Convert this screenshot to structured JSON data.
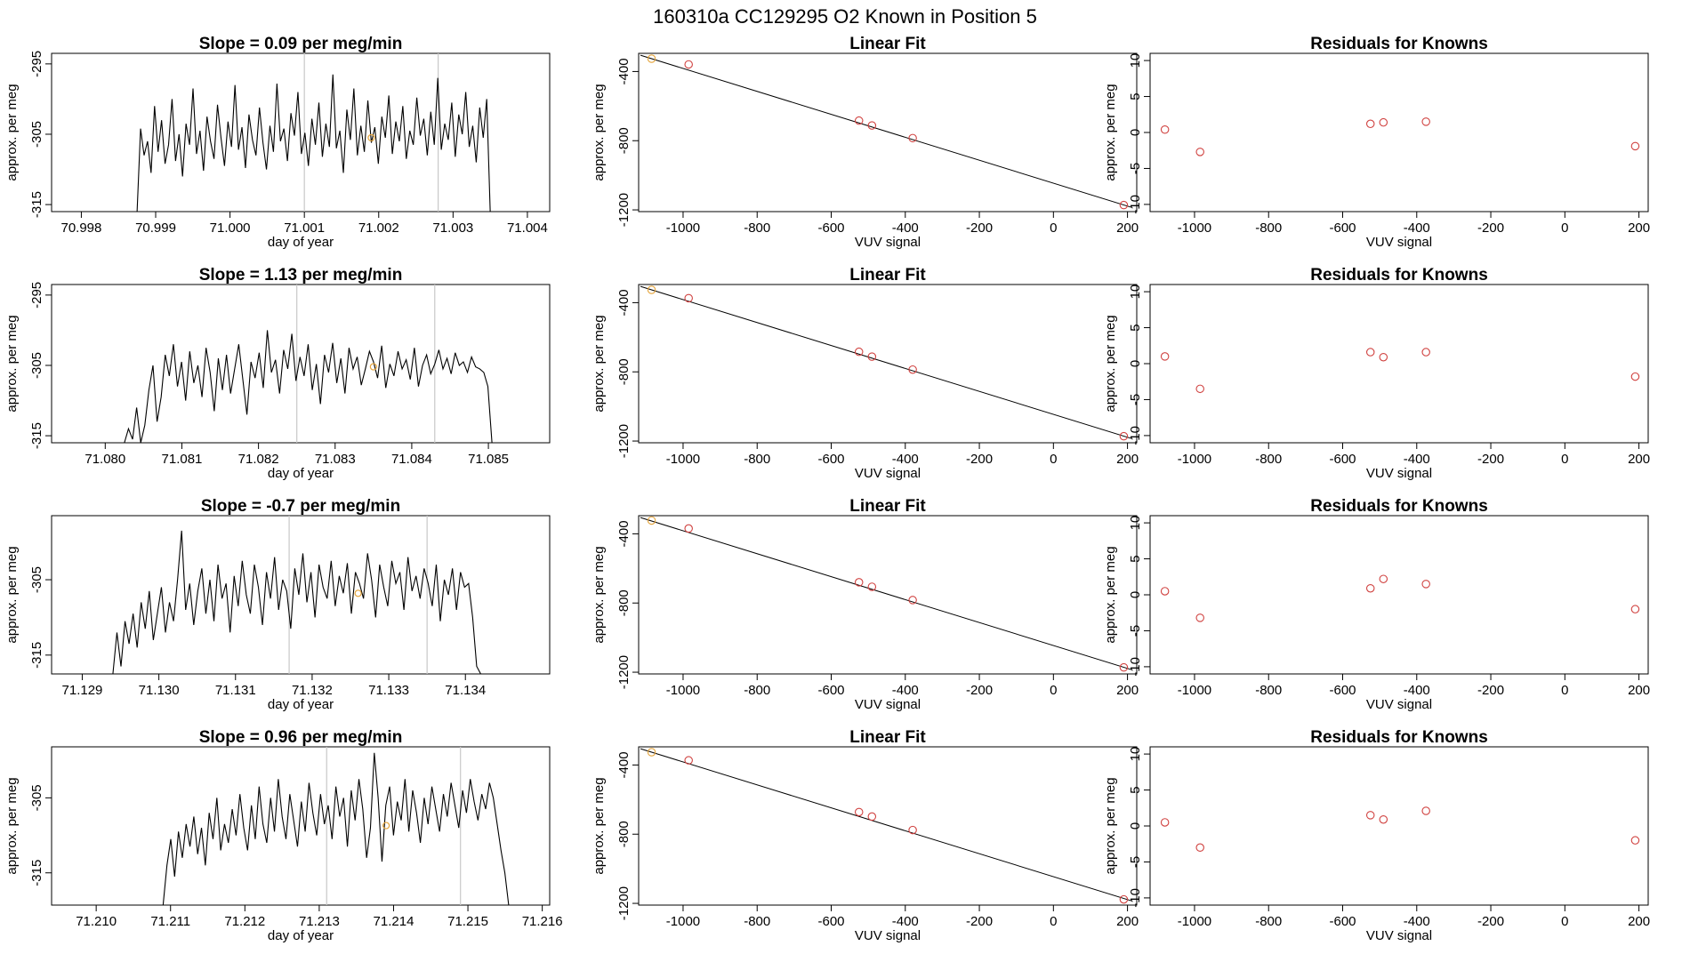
{
  "figure_title": "160310a      CC129295   O2 Known in Position  5",
  "colors": {
    "ts_line": "#000000",
    "highlight": "#e5a43a",
    "known_points": "#d0413f",
    "reference_lines": "#c8c8c8"
  },
  "chart_data": [
    {
      "row": 1,
      "type": "line",
      "title": "Slope =  0.09  per meg/min",
      "xlabel": "day of year",
      "ylabel": "approx. per meg",
      "xlim": [
        70.9976,
        71.0043
      ],
      "ylim": [
        -316,
        -293.5
      ],
      "xticks": [
        70.998,
        70.999,
        71.0,
        71.001,
        71.002,
        71.003,
        71.004
      ],
      "xtick_labels": [
        "70.998",
        "70.999",
        "71.000",
        "71.001",
        "71.002",
        "71.003",
        "71.004"
      ],
      "yticks": [
        -315,
        -305,
        -295
      ],
      "ytick_labels": [
        "-315",
        "-305",
        "-295"
      ],
      "x_start": 70.99875,
      "x_end": 71.0035,
      "y_start": -316,
      "y_end": -316,
      "ref_lines": [
        71.001,
        71.0028
      ],
      "highlight_point": {
        "x": 71.0019,
        "y": -305.5
      },
      "values": [
        -304.2,
        -308.0,
        -306.0,
        -310.5,
        -301.0,
        -307.5,
        -303.0,
        -309.2,
        -306.5,
        -300.0,
        -308.8,
        -305.0,
        -311.0,
        -303.5,
        -306.5,
        -298.5,
        -307.8,
        -304.5,
        -310.2,
        -302.5,
        -306.0,
        -308.5,
        -300.8,
        -305.5,
        -309.5,
        -303.2,
        -306.8,
        -298.0,
        -307.2,
        -304.0,
        -309.8,
        -302.2,
        -305.8,
        -308.0,
        -301.2,
        -306.2,
        -310.0,
        -303.8,
        -307.5,
        -297.8,
        -306.0,
        -304.2,
        -308.8,
        -302.0,
        -305.2,
        -299.0,
        -307.8,
        -304.8,
        -309.5,
        -302.8,
        -306.5,
        -300.5,
        -308.2,
        -303.5,
        -306.8,
        -296.5,
        -307.0,
        -304.5,
        -310.5,
        -301.5,
        -305.8,
        -298.5,
        -308.0,
        -303.8,
        -307.5,
        -300.2,
        -306.2,
        -304.0,
        -309.2,
        -302.5,
        -305.5,
        -299.5,
        -307.8,
        -303.2,
        -306.0,
        -301.0,
        -308.5,
        -304.5,
        -306.5,
        -299.8,
        -305.2,
        -302.8,
        -308.0,
        -301.8,
        -306.5,
        -297.0,
        -307.2,
        -303.5,
        -305.8,
        -300.5,
        -308.2,
        -302.2,
        -305.0,
        -299.0,
        -306.8,
        -303.8,
        -309.0,
        -301.2,
        -305.5,
        -300.0
      ]
    },
    {
      "row": 2,
      "type": "line",
      "title": "Slope =  1.13  per meg/min",
      "xlabel": "day of year",
      "ylabel": "approx. per meg",
      "xlim": [
        71.0793,
        71.0858
      ],
      "ylim": [
        -316,
        -293.5
      ],
      "xticks": [
        71.08,
        71.081,
        71.082,
        71.083,
        71.084,
        71.085
      ],
      "xtick_labels": [
        "71.080",
        "71.081",
        "71.082",
        "71.083",
        "71.084",
        "71.085"
      ],
      "yticks": [
        -315,
        -305,
        -295
      ],
      "ytick_labels": [
        "-315",
        "-305",
        "-295"
      ],
      "x_start": 71.08025,
      "x_end": 71.0851,
      "y_start": -316,
      "y_end": -316,
      "ref_lines": [
        71.0825,
        71.0843
      ],
      "highlight_point": {
        "x": 71.0835,
        "y": -305.2
      },
      "values": [
        -314.0,
        -315.5,
        -311.0,
        -316.0,
        -313.5,
        -308.5,
        -305.0,
        -313.0,
        -309.5,
        -303.5,
        -306.5,
        -302.0,
        -308.0,
        -304.5,
        -310.0,
        -303.0,
        -307.5,
        -305.0,
        -309.5,
        -302.5,
        -306.0,
        -311.5,
        -304.0,
        -308.5,
        -303.5,
        -309.0,
        -305.5,
        -302.0,
        -307.0,
        -312.0,
        -304.5,
        -306.8,
        -303.2,
        -308.2,
        -300.0,
        -306.0,
        -304.2,
        -309.0,
        -302.8,
        -305.5,
        -300.5,
        -307.2,
        -303.8,
        -306.5,
        -302.0,
        -308.5,
        -304.8,
        -310.5,
        -303.5,
        -306.0,
        -301.8,
        -307.5,
        -304.0,
        -309.0,
        -302.5,
        -305.5,
        -303.8,
        -307.8,
        -305.5,
        -303.0,
        -304.5,
        -306.8,
        -302.2,
        -308.2,
        -304.8,
        -306.5,
        -303.0,
        -305.5,
        -304.2,
        -307.0,
        -302.5,
        -308.0,
        -305.0,
        -303.5,
        -306.2,
        -304.8,
        -302.8,
        -305.5,
        -304.0,
        -306.2,
        -303.2,
        -305.0,
        -304.5,
        -306.0,
        -303.8,
        -305.2,
        -305.5,
        -306.0,
        -308.0,
        -316.0
      ]
    },
    {
      "row": 3,
      "type": "line",
      "title": "Slope =  -0.7  per meg/min",
      "xlabel": "day of year",
      "ylabel": "approx. per meg",
      "xlim": [
        71.1286,
        71.1351
      ],
      "ylim": [
        -317.5,
        -296.5
      ],
      "xticks": [
        71.129,
        71.13,
        71.131,
        71.132,
        71.133,
        71.134
      ],
      "xtick_labels": [
        "71.129",
        "71.130",
        "71.131",
        "71.132",
        "71.133",
        "71.134"
      ],
      "yticks": [
        -315,
        -305
      ],
      "ytick_labels": [
        "-315",
        "-305"
      ],
      "x_start": 71.1294,
      "x_end": 71.1342,
      "y_start": -317.5,
      "y_end": -317.5,
      "ref_lines": [
        71.1317,
        71.1335
      ],
      "highlight_point": {
        "x": 71.1326,
        "y": -306.8
      },
      "values": [
        -312.0,
        -316.5,
        -310.5,
        -313.5,
        -309.5,
        -314.0,
        -308.0,
        -311.5,
        -306.5,
        -313.0,
        -309.5,
        -306.0,
        -312.0,
        -308.0,
        -310.5,
        -305.0,
        -298.5,
        -309.0,
        -305.5,
        -311.0,
        -306.5,
        -303.5,
        -309.5,
        -305.0,
        -310.5,
        -303.0,
        -307.5,
        -305.5,
        -312.0,
        -304.5,
        -308.5,
        -302.5,
        -307.0,
        -309.5,
        -303.0,
        -306.0,
        -311.0,
        -304.0,
        -307.5,
        -302.0,
        -309.0,
        -305.0,
        -306.5,
        -311.5,
        -303.5,
        -307.0,
        -301.5,
        -308.0,
        -304.0,
        -310.0,
        -303.0,
        -306.0,
        -307.5,
        -302.5,
        -308.5,
        -304.5,
        -306.8,
        -302.8,
        -309.5,
        -304.0,
        -305.5,
        -307.5,
        -301.5,
        -305.0,
        -310.0,
        -303.0,
        -306.0,
        -308.5,
        -302.5,
        -305.5,
        -304.0,
        -309.0,
        -302.0,
        -306.5,
        -304.5,
        -307.5,
        -303.5,
        -305.5,
        -308.5,
        -303.0,
        -310.5,
        -305.0,
        -307.0,
        -303.5,
        -309.0,
        -304.0,
        -306.0,
        -305.5,
        -310.0,
        -316.5
      ]
    },
    {
      "row": 4,
      "type": "line",
      "title": "Slope =  0.96  per meg/min",
      "xlabel": "day of year",
      "ylabel": "approx. per meg",
      "xlim": [
        71.2094,
        71.2161
      ],
      "ylim": [
        -319.3,
        -298.2
      ],
      "xticks": [
        71.21,
        71.211,
        71.212,
        71.213,
        71.214,
        71.215,
        71.216
      ],
      "xtick_labels": [
        "71.210",
        "71.211",
        "71.212",
        "71.213",
        "71.214",
        "71.215",
        "71.216"
      ],
      "yticks": [
        -315,
        -305
      ],
      "ytick_labels": [
        "-315",
        "-305"
      ],
      "x_start": 71.2109,
      "x_end": 71.2156,
      "y_start": -319.3,
      "y_end": -319.3,
      "ref_lines": [
        71.2131,
        71.2149
      ],
      "highlight_point": {
        "x": 71.2139,
        "y": -308.7
      },
      "values": [
        -314.0,
        -310.5,
        -315.5,
        -309.5,
        -313.0,
        -308.5,
        -311.5,
        -307.5,
        -312.5,
        -309.0,
        -314.0,
        -307.0,
        -310.5,
        -305.0,
        -312.0,
        -308.5,
        -311.0,
        -306.5,
        -310.0,
        -304.5,
        -309.0,
        -312.0,
        -306.0,
        -310.5,
        -303.5,
        -308.5,
        -311.0,
        -305.0,
        -309.5,
        -302.5,
        -307.5,
        -310.5,
        -304.5,
        -308.0,
        -311.5,
        -305.5,
        -309.5,
        -303.0,
        -307.0,
        -310.0,
        -304.5,
        -308.5,
        -306.0,
        -310.5,
        -303.5,
        -307.5,
        -305.0,
        -311.5,
        -304.0,
        -308.0,
        -302.5,
        -306.5,
        -313.0,
        -309.0,
        -299.0,
        -305.0,
        -313.5,
        -306.0,
        -303.5,
        -310.0,
        -305.5,
        -308.0,
        -302.5,
        -309.5,
        -304.0,
        -307.0,
        -311.0,
        -305.0,
        -308.5,
        -303.5,
        -306.5,
        -309.5,
        -304.5,
        -307.5,
        -303.0,
        -306.0,
        -309.0,
        -304.0,
        -307.0,
        -302.5,
        -305.5,
        -308.0,
        -304.5,
        -306.5,
        -303.0,
        -305.0,
        -308.5,
        -312.0,
        -315.0,
        -319.3
      ]
    }
  ],
  "fit_charts": [
    {
      "row": 1,
      "type": "scatter",
      "title": "Linear Fit",
      "xlabel": "VUV signal",
      "ylabel": "approx. per meg",
      "xlim": [
        -1120,
        225
      ],
      "ylim": [
        -1210,
        -295
      ],
      "xticks": [
        -1000,
        -800,
        -600,
        -400,
        -200,
        0,
        200
      ],
      "xtick_labels": [
        "-1000",
        "-800",
        "-600",
        "-400",
        "-200",
        "0",
        "200"
      ],
      "yticks": [
        -1200,
        -800,
        -400
      ],
      "ytick_labels": [
        "-1200",
        "-800",
        "-400"
      ],
      "fit_line": {
        "x": [
          -1115,
          210
        ],
        "y": [
          -306,
          -1185
        ]
      },
      "points": [
        {
          "x": -1085,
          "y": -326,
          "color": "highlight"
        },
        {
          "x": -985,
          "y": -359,
          "color": "known"
        },
        {
          "x": -525,
          "y": -684,
          "color": "known"
        },
        {
          "x": -490,
          "y": -712,
          "color": "known"
        },
        {
          "x": -380,
          "y": -785,
          "color": "known"
        },
        {
          "x": 190,
          "y": -1172,
          "color": "known"
        }
      ]
    },
    {
      "row": 2,
      "type": "scatter",
      "title": "Linear Fit",
      "xlabel": "VUV signal",
      "ylabel": "approx. per meg",
      "xlim": [
        -1120,
        225
      ],
      "ylim": [
        -1210,
        -295
      ],
      "xticks": [
        -1000,
        -800,
        -600,
        -400,
        -200,
        0,
        200
      ],
      "xtick_labels": [
        "-1000",
        "-800",
        "-600",
        "-400",
        "-200",
        "0",
        "200"
      ],
      "yticks": [
        -1200,
        -800,
        -400
      ],
      "ytick_labels": [
        "-1200",
        "-800",
        "-400"
      ],
      "fit_line": {
        "x": [
          -1115,
          210
        ],
        "y": [
          -306,
          -1185
        ]
      },
      "points": [
        {
          "x": -1085,
          "y": -326,
          "color": "highlight"
        },
        {
          "x": -985,
          "y": -374,
          "color": "known"
        },
        {
          "x": -525,
          "y": -684,
          "color": "known"
        },
        {
          "x": -490,
          "y": -712,
          "color": "known"
        },
        {
          "x": -380,
          "y": -787,
          "color": "known"
        },
        {
          "x": 190,
          "y": -1172,
          "color": "known"
        }
      ]
    },
    {
      "row": 3,
      "type": "scatter",
      "title": "Linear Fit",
      "xlabel": "VUV signal",
      "ylabel": "approx. per meg",
      "xlim": [
        -1120,
        225
      ],
      "ylim": [
        -1210,
        -295
      ],
      "xticks": [
        -1000,
        -800,
        -600,
        -400,
        -200,
        0,
        200
      ],
      "xtick_labels": [
        "-1000",
        "-800",
        "-600",
        "-400",
        "-200",
        "0",
        "200"
      ],
      "yticks": [
        -1200,
        -800,
        -400
      ],
      "ytick_labels": [
        "-1200",
        "-800",
        "-400"
      ],
      "fit_line": {
        "x": [
          -1115,
          210
        ],
        "y": [
          -306,
          -1185
        ]
      },
      "points": [
        {
          "x": -1085,
          "y": -323,
          "color": "highlight"
        },
        {
          "x": -985,
          "y": -369,
          "color": "known"
        },
        {
          "x": -525,
          "y": -680,
          "color": "known"
        },
        {
          "x": -490,
          "y": -706,
          "color": "known"
        },
        {
          "x": -380,
          "y": -783,
          "color": "known"
        },
        {
          "x": 190,
          "y": -1172,
          "color": "known"
        }
      ]
    },
    {
      "row": 4,
      "type": "scatter",
      "title": "Linear Fit",
      "xlabel": "VUV signal",
      "ylabel": "approx. per meg",
      "xlim": [
        -1120,
        225
      ],
      "ylim": [
        -1210,
        -295
      ],
      "xticks": [
        -1000,
        -800,
        -600,
        -400,
        -200,
        0,
        200
      ],
      "xtick_labels": [
        "-1000",
        "-800",
        "-600",
        "-400",
        "-200",
        "0",
        "200"
      ],
      "yticks": [
        -1200,
        -800,
        -400
      ],
      "ytick_labels": [
        "-1200",
        "-800",
        "-400"
      ],
      "fit_line": {
        "x": [
          -1115,
          210
        ],
        "y": [
          -306,
          -1185
        ]
      },
      "points": [
        {
          "x": -1085,
          "y": -326,
          "color": "highlight"
        },
        {
          "x": -985,
          "y": -373,
          "color": "known"
        },
        {
          "x": -525,
          "y": -672,
          "color": "known"
        },
        {
          "x": -490,
          "y": -698,
          "color": "known"
        },
        {
          "x": -380,
          "y": -776,
          "color": "known"
        },
        {
          "x": 190,
          "y": -1177,
          "color": "known"
        }
      ]
    }
  ],
  "residual_charts": [
    {
      "row": 1,
      "type": "scatter",
      "title": "Residuals for Knowns",
      "xlabel": "VUV signal",
      "ylabel": "approx. per meg",
      "xlim": [
        -1120,
        225
      ],
      "ylim": [
        -11,
        11
      ],
      "xticks": [
        -1000,
        -800,
        -600,
        -400,
        -200,
        0,
        200
      ],
      "xtick_labels": [
        "-1000",
        "-800",
        "-600",
        "-400",
        "-200",
        "0",
        "200"
      ],
      "yticks": [
        -10,
        -5,
        0,
        5,
        10
      ],
      "ytick_labels": [
        "-10",
        "-5",
        "0",
        "5",
        "10"
      ],
      "x": [
        -1080,
        -985,
        -525,
        -490,
        -375,
        190
      ],
      "y": [
        0.4,
        -2.7,
        1.2,
        1.4,
        1.5,
        -1.9
      ]
    },
    {
      "row": 2,
      "type": "scatter",
      "title": "Residuals for Knowns",
      "xlabel": "VUV signal",
      "ylabel": "approx. per meg",
      "xlim": [
        -1120,
        225
      ],
      "ylim": [
        -11,
        11
      ],
      "xticks": [
        -1000,
        -800,
        -600,
        -400,
        -200,
        0,
        200
      ],
      "xtick_labels": [
        "-1000",
        "-800",
        "-600",
        "-400",
        "-200",
        "0",
        "200"
      ],
      "yticks": [
        -10,
        -5,
        0,
        5,
        10
      ],
      "ytick_labels": [
        "-10",
        "-5",
        "0",
        "5",
        "10"
      ],
      "x": [
        -1080,
        -985,
        -525,
        -490,
        -375,
        190
      ],
      "y": [
        1.0,
        -3.5,
        1.6,
        0.9,
        1.6,
        -1.8
      ]
    },
    {
      "row": 3,
      "type": "scatter",
      "title": "Residuals for Knowns",
      "xlabel": "VUV signal",
      "ylabel": "approx. per meg",
      "xlim": [
        -1120,
        225
      ],
      "ylim": [
        -11,
        11
      ],
      "xticks": [
        -1000,
        -800,
        -600,
        -400,
        -200,
        0,
        200
      ],
      "xtick_labels": [
        "-1000",
        "-800",
        "-600",
        "-400",
        "-200",
        "0",
        "200"
      ],
      "yticks": [
        -10,
        -5,
        0,
        5,
        10
      ],
      "ytick_labels": [
        "-10",
        "-5",
        "0",
        "5",
        "10"
      ],
      "x": [
        -1080,
        -985,
        -525,
        -490,
        -375,
        190
      ],
      "y": [
        0.5,
        -3.2,
        0.9,
        2.2,
        1.5,
        -2.0
      ]
    },
    {
      "row": 4,
      "type": "scatter",
      "title": "Residuals for Knowns",
      "xlabel": "VUV signal",
      "ylabel": "approx. per meg",
      "xlim": [
        -1120,
        225
      ],
      "ylim": [
        -11,
        11
      ],
      "xticks": [
        -1000,
        -800,
        -600,
        -400,
        -200,
        0,
        200
      ],
      "xtick_labels": [
        "-1000",
        "-800",
        "-600",
        "-400",
        "-200",
        "0",
        "200"
      ],
      "yticks": [
        -10,
        -5,
        0,
        5,
        10
      ],
      "ytick_labels": [
        "-10",
        "-5",
        "0",
        "5",
        "10"
      ],
      "x": [
        -1080,
        -985,
        -525,
        -490,
        -375,
        190
      ],
      "y": [
        0.5,
        -3.0,
        1.5,
        0.9,
        2.1,
        -2.0
      ]
    }
  ]
}
